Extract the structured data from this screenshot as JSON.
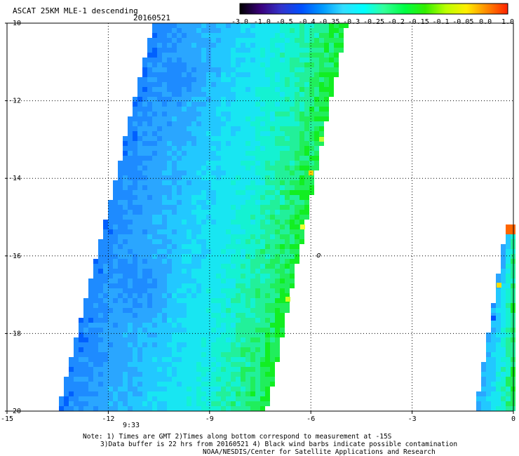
{
  "title": "ASCAT 25KM MLE-1 descending",
  "date": "20160521",
  "colorbar": {
    "tick_labels": [
      "-3.0",
      "-1.0",
      "-0.5",
      "-0.4",
      "-0.35",
      "-0.3",
      "-0.25",
      "-0.2",
      "-0.15",
      "-0.1",
      "-0.05",
      "0.0",
      "1.0"
    ],
    "colors": [
      "#000000",
      "#3a007a",
      "#3333cc",
      "#0050ff",
      "#0099ff",
      "#33ddff",
      "#00ffff",
      "#33ff99",
      "#00ff44",
      "#33ee00",
      "#bbff00",
      "#ffee00",
      "#ff8800",
      "#ff2200"
    ]
  },
  "x_axis": {
    "ticks": [
      "-15",
      "-12",
      "-9",
      "-6",
      "-3",
      "0"
    ]
  },
  "y_axis": {
    "ticks": [
      "-10",
      "-12",
      "-14",
      "-16",
      "-18",
      "-20"
    ]
  },
  "time_label": "9:33",
  "time_label_color": "#cc2200",
  "land_label": "o",
  "notes": {
    "line1": "Note: 1) Times are GMT 2)Times along bottom correspond to measurement at -15S",
    "line2": "3)Data buffer is 22 hrs from 20160521 4) Black wind barbs indicate possible contamination",
    "line3": "NOAA/NESDIS/Center for Satellite Applications and Research"
  }
}
